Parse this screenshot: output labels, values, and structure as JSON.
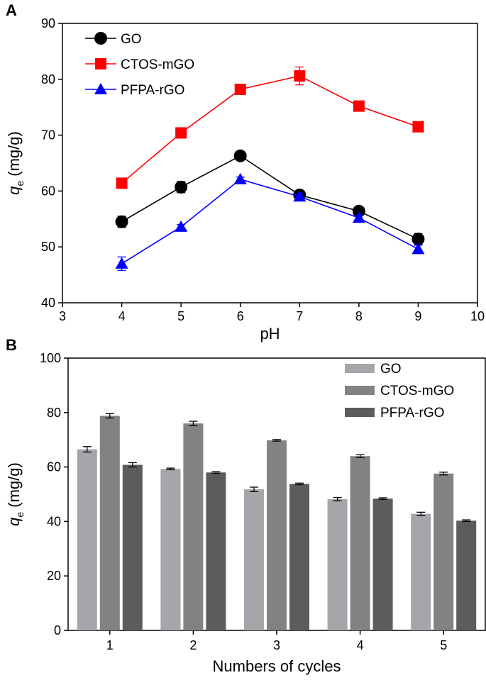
{
  "chart_data": [
    {
      "type": "line",
      "panel_label": "A",
      "xlabel": "pH",
      "ylabel_main": "q",
      "ylabel_sub": "e",
      "ylabel_unit": " (mg/g)",
      "xlim": [
        3,
        10
      ],
      "ylim": [
        40,
        90
      ],
      "xticks": [
        3,
        4,
        5,
        6,
        7,
        8,
        9,
        10
      ],
      "yticks": [
        40,
        50,
        60,
        70,
        80,
        90
      ],
      "x": [
        4,
        5,
        6,
        7,
        8,
        9
      ],
      "series": [
        {
          "name": "GO",
          "marker": "circle",
          "color": "#000000",
          "values": [
            54.5,
            60.7,
            66.3,
            59.3,
            56.4,
            51.4
          ],
          "errors": [
            1.0,
            1.0,
            0.5,
            0.6,
            0.5,
            1.0
          ]
        },
        {
          "name": "CTOS-mGO",
          "marker": "square",
          "color": "#ff0000",
          "values": [
            61.4,
            70.4,
            78.2,
            80.6,
            75.2,
            71.5
          ],
          "errors": [
            0.4,
            0.4,
            0.5,
            1.6,
            0.4,
            0.4
          ]
        },
        {
          "name": "PFPA-rGO",
          "marker": "triangle",
          "color": "#0000ff",
          "values": [
            47.0,
            53.6,
            62.1,
            59.0,
            55.2,
            49.6
          ],
          "errors": [
            1.2,
            0.4,
            0.4,
            0.5,
            0.5,
            0.7
          ]
        }
      ]
    },
    {
      "type": "bar",
      "panel_label": "B",
      "xlabel": "Numbers of cycles",
      "ylabel_main": "q",
      "ylabel_sub": "e",
      "ylabel_unit": " (mg/g)",
      "ylim": [
        0,
        100
      ],
      "yticks": [
        0,
        20,
        40,
        60,
        80,
        100
      ],
      "categories": [
        "1",
        "2",
        "3",
        "4",
        "5"
      ],
      "series": [
        {
          "name": "GO",
          "color": "#a5a5aa",
          "values": [
            66.5,
            59.3,
            51.8,
            48.2,
            42.8
          ],
          "errors": [
            1.0,
            0.3,
            0.8,
            0.6,
            0.6
          ]
        },
        {
          "name": "CTOS-mGO",
          "color": "#828282",
          "values": [
            78.8,
            76.0,
            69.8,
            64.0,
            57.6
          ],
          "errors": [
            0.8,
            0.8,
            0.3,
            0.5,
            0.5
          ]
        },
        {
          "name": "PFPA-rGO",
          "color": "#5c5c5c",
          "values": [
            60.8,
            58.0,
            53.8,
            48.4,
            40.3
          ],
          "errors": [
            0.8,
            0.3,
            0.3,
            0.3,
            0.3
          ]
        }
      ]
    }
  ]
}
